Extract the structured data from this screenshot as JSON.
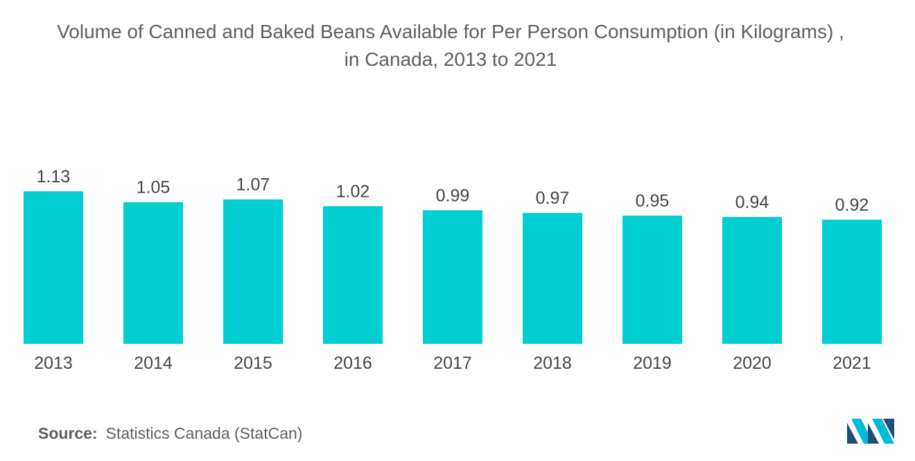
{
  "chart_data": {
    "type": "bar",
    "title": "Volume of Canned and Baked Beans Available for Per Person Consumption (in Kilograms) ,",
    "subtitle": "in Canada, 2013 to 2021",
    "categories": [
      "2013",
      "2014",
      "2015",
      "2016",
      "2017",
      "2018",
      "2019",
      "2020",
      "2021"
    ],
    "values": [
      1.13,
      1.05,
      1.07,
      1.02,
      0.99,
      0.97,
      0.95,
      0.94,
      0.92
    ],
    "value_labels": [
      "1.13",
      "1.05",
      "1.07",
      "1.02",
      "0.99",
      "0.97",
      "0.95",
      "0.94",
      "0.92"
    ],
    "xlabel": "",
    "ylabel": "",
    "ylim": [
      0,
      1.2
    ],
    "grid": false,
    "legend": "none",
    "bar_color": "#00CED1"
  },
  "source": {
    "label": "Source:",
    "text": "Statistics Canada (StatCan)"
  },
  "logo": {
    "icon": "mordor-intelligence-logo",
    "colors": [
      "#1f4e79",
      "#00bcd4"
    ]
  }
}
